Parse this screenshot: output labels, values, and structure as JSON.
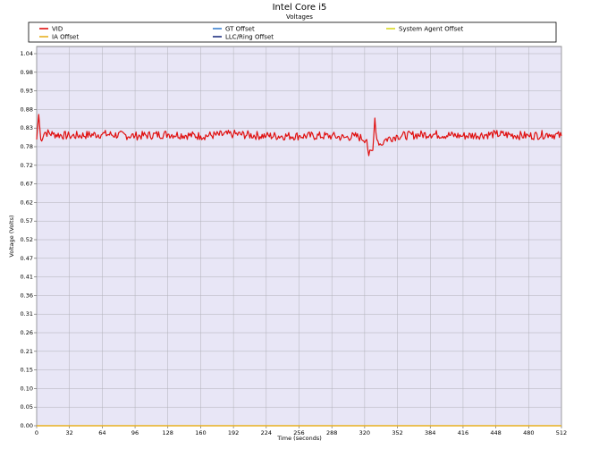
{
  "chart_data": {
    "type": "line",
    "title": "Intel Core i5",
    "subtitle": "Voltages",
    "xlabel": "Time (seconds)",
    "ylabel": "Voltage (Volts)",
    "xlim": [
      0,
      512
    ],
    "ylim": [
      0,
      1.06
    ],
    "x_ticks": [
      0,
      32,
      64,
      96,
      128,
      160,
      192,
      224,
      256,
      288,
      320,
      352,
      384,
      416,
      448,
      480,
      512
    ],
    "y_ticks": [
      "0.00",
      "0.05",
      "0.10",
      "0.15",
      "0.21",
      "0.26",
      "0.31",
      "0.36",
      "0.41",
      "0.47",
      "0.52",
      "0.57",
      "0.62",
      "0.67",
      "0.72",
      "0.78",
      "0.83",
      "0.88",
      "0.93",
      "0.98",
      "1.04"
    ],
    "y_tick_values": [
      0,
      0.052,
      0.104,
      0.156,
      0.208,
      0.26,
      0.312,
      0.364,
      0.416,
      0.468,
      0.52,
      0.572,
      0.624,
      0.676,
      0.728,
      0.78,
      0.832,
      0.884,
      0.936,
      0.988,
      1.04
    ],
    "grid": true,
    "background": "#e8e6f6",
    "legend_position": "top",
    "series": [
      {
        "name": "VID",
        "color": "#e01010",
        "visible": true,
        "points": [
          [
            0,
            0.8
          ],
          [
            2,
            0.87
          ],
          [
            4,
            0.8
          ],
          [
            8,
            0.82
          ],
          [
            16,
            0.815
          ],
          [
            32,
            0.81
          ],
          [
            64,
            0.815
          ],
          [
            96,
            0.81
          ],
          [
            128,
            0.815
          ],
          [
            160,
            0.81
          ],
          [
            192,
            0.815
          ],
          [
            224,
            0.81
          ],
          [
            256,
            0.81
          ],
          [
            288,
            0.81
          ],
          [
            300,
            0.805
          ],
          [
            310,
            0.81
          ],
          [
            322,
            0.8
          ],
          [
            324,
            0.755
          ],
          [
            328,
            0.77
          ],
          [
            330,
            0.86
          ],
          [
            332,
            0.8
          ],
          [
            336,
            0.785
          ],
          [
            340,
            0.8
          ],
          [
            352,
            0.81
          ],
          [
            384,
            0.815
          ],
          [
            416,
            0.81
          ],
          [
            448,
            0.815
          ],
          [
            480,
            0.81
          ],
          [
            500,
            0.815
          ],
          [
            512,
            0.81
          ]
        ],
        "noise": 0.012
      },
      {
        "name": "GT Offset",
        "color": "#3a80d0",
        "visible": false,
        "value": 0
      },
      {
        "name": "System Agent Offset",
        "color": "#d8d820",
        "visible": false,
        "value": 0
      },
      {
        "name": "IA Offset",
        "color": "#e8b020",
        "visible": true,
        "value": 0
      },
      {
        "name": "LLC/Ring Offset",
        "color": "#203080",
        "visible": false,
        "value": 0
      }
    ]
  }
}
